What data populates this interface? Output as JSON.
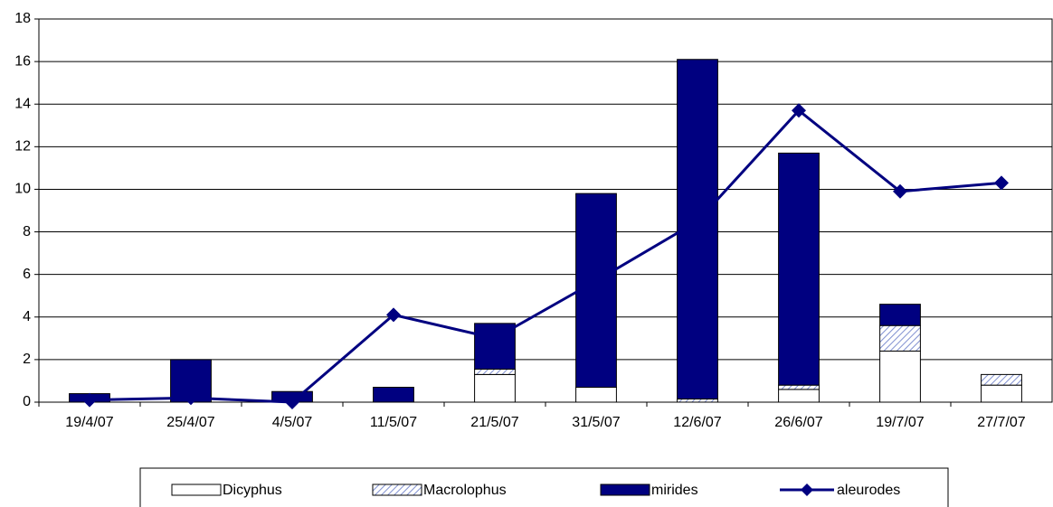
{
  "chart_data": {
    "type": "bar-line",
    "categories": [
      "19/4/07",
      "25/4/07",
      "4/5/07",
      "11/5/07",
      "21/5/07",
      "31/5/07",
      "12/6/07",
      "26/6/07",
      "19/7/07",
      "27/7/07"
    ],
    "series": [
      {
        "name": "Dicyphus",
        "type": "bar",
        "color": "#ffffff",
        "values": [
          0,
          0,
          0,
          0,
          1.3,
          0.7,
          0,
          0.6,
          2.4,
          0.8
        ]
      },
      {
        "name": "Macrolophus",
        "type": "bar",
        "color": "#8090d0",
        "hatch": true,
        "values": [
          0,
          0,
          0,
          0,
          0.25,
          0,
          0.15,
          0.2,
          1.2,
          0.5
        ]
      },
      {
        "name": "mirides",
        "type": "bar",
        "color": "#000080",
        "values": [
          0.4,
          2.0,
          0.5,
          0.7,
          2.15,
          9.1,
          15.95,
          10.9,
          1.0,
          0
        ]
      },
      {
        "name": "aleurodes",
        "type": "line",
        "color": "#000080",
        "values": [
          0.1,
          0.2,
          0.0,
          4.1,
          3.0,
          5.7,
          8.5,
          13.7,
          9.9,
          10.3
        ]
      }
    ],
    "ylim": [
      0,
      18
    ],
    "yticks": [
      0,
      2,
      4,
      6,
      8,
      10,
      12,
      14,
      16,
      18
    ],
    "grid": true,
    "stacked": true,
    "legend": "bottom"
  }
}
